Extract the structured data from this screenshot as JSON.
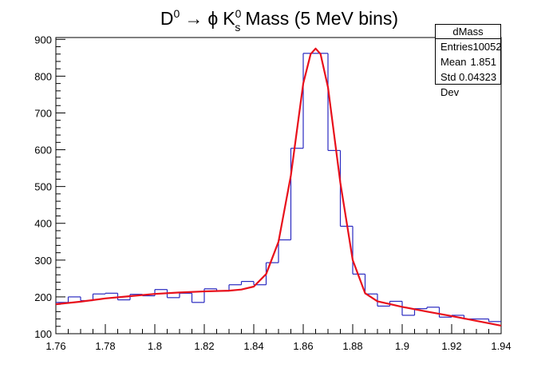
{
  "chart_data": {
    "type": "histogram",
    "title": {
      "base_D": "D",
      "sup_D": "0",
      "arrow": "→",
      "phi": "ϕ",
      "base_K": "K",
      "sup_K": "0",
      "sub_K": "s",
      "rest": "Mass (5 MeV bins)"
    },
    "xlim": [
      1.76,
      1.94
    ],
    "ylim": [
      100,
      905
    ],
    "x_ticks": [
      1.76,
      1.78,
      1.8,
      1.82,
      1.84,
      1.86,
      1.88,
      1.9,
      1.92,
      1.94
    ],
    "x_tick_labels": [
      "1.76",
      "1.78",
      "1.8",
      "1.82",
      "1.84",
      "1.86",
      "1.88",
      "1.9",
      "1.92",
      "1.94"
    ],
    "y_ticks": [
      100,
      200,
      300,
      400,
      500,
      600,
      700,
      800,
      900
    ],
    "y_tick_labels": [
      "100",
      "200",
      "300",
      "400",
      "500",
      "600",
      "700",
      "800",
      "900"
    ],
    "bin_edges": [
      1.76,
      1.765,
      1.77,
      1.775,
      1.78,
      1.785,
      1.79,
      1.795,
      1.8,
      1.805,
      1.81,
      1.815,
      1.82,
      1.825,
      1.83,
      1.835,
      1.84,
      1.845,
      1.85,
      1.855,
      1.86,
      1.865,
      1.87,
      1.875,
      1.88,
      1.885,
      1.89,
      1.895,
      1.9,
      1.905,
      1.91,
      1.915,
      1.92,
      1.925,
      1.93,
      1.935,
      1.94
    ],
    "histogram_counts": [
      185,
      200,
      190,
      208,
      210,
      192,
      207,
      203,
      220,
      198,
      210,
      185,
      222,
      216,
      233,
      242,
      233,
      293,
      355,
      604,
      862,
      862,
      598,
      392,
      262,
      208,
      175,
      188,
      150,
      168,
      172,
      145,
      150,
      140,
      140,
      133
    ],
    "histogram_color": "#2a2ac0",
    "fit_color": "#e8101b",
    "fit_curve": {
      "x": [
        1.76,
        1.77,
        1.78,
        1.79,
        1.8,
        1.81,
        1.82,
        1.83,
        1.835,
        1.84,
        1.845,
        1.85,
        1.855,
        1.86,
        1.863,
        1.865,
        1.867,
        1.87,
        1.875,
        1.88,
        1.885,
        1.89,
        1.9,
        1.91,
        1.92,
        1.93,
        1.94
      ],
      "y": [
        180,
        187,
        196,
        202,
        208,
        212,
        215,
        217,
        220,
        228,
        262,
        350,
        530,
        780,
        860,
        875,
        860,
        770,
        510,
        300,
        210,
        188,
        173,
        160,
        148,
        135,
        122
      ]
    },
    "stats": {
      "name": "dMass",
      "rows": [
        {
          "label": "Entries",
          "value": "10052"
        },
        {
          "label": "Mean",
          "value": "1.851"
        },
        {
          "label": "Std Dev",
          "value": "0.04323"
        }
      ]
    }
  }
}
